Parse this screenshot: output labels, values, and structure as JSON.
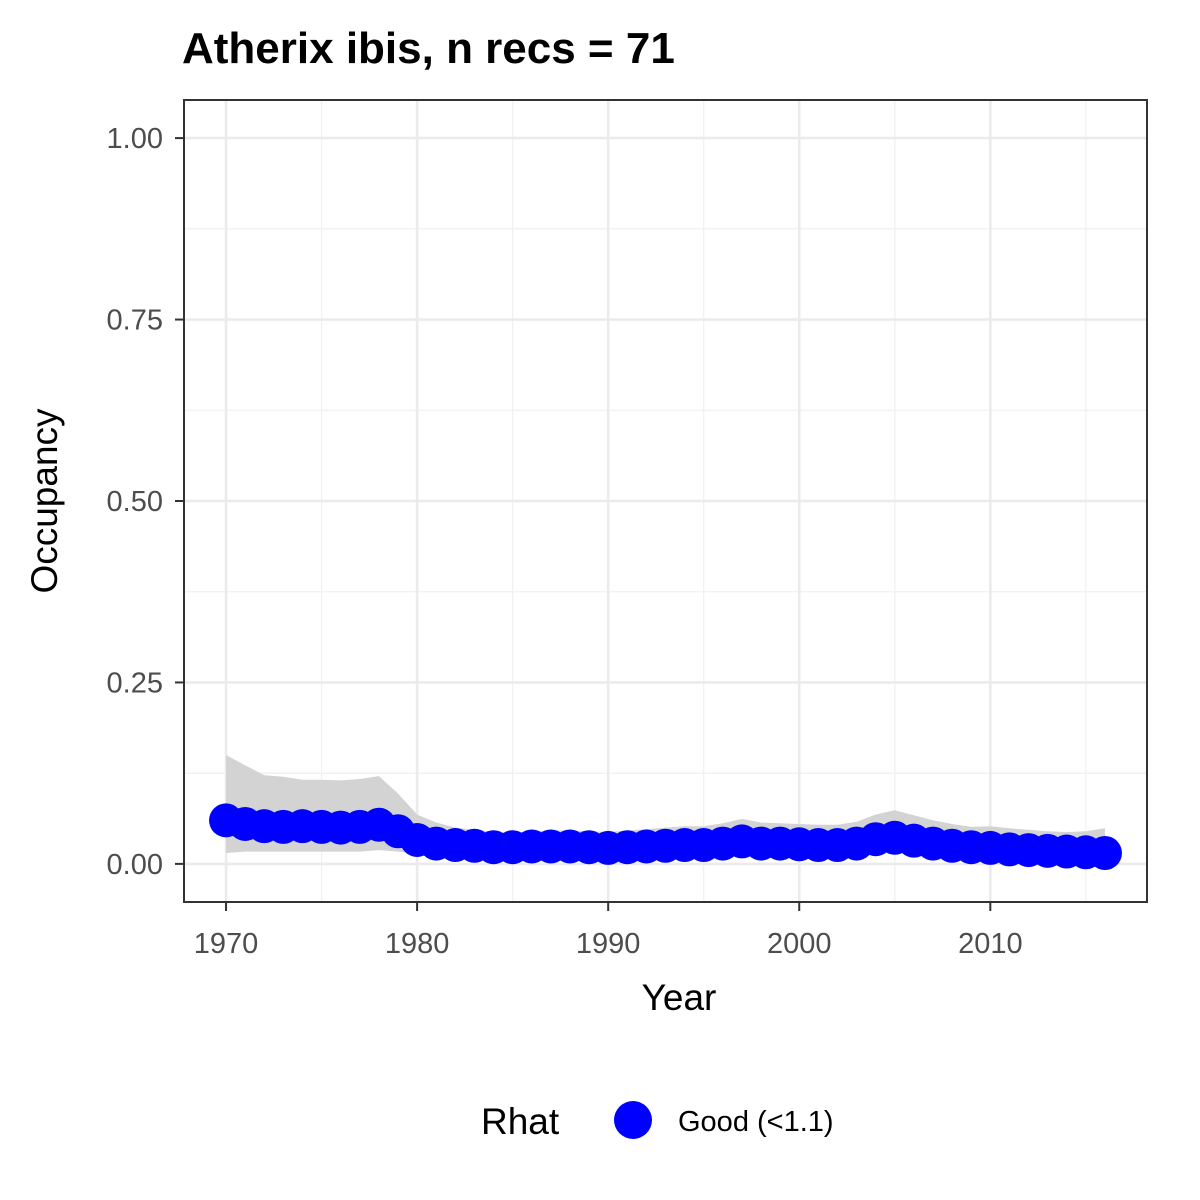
{
  "chart_data": {
    "type": "line",
    "title": "Atherix ibis, n recs = 71",
    "xlabel": "Year",
    "ylabel": "Occupancy",
    "xlim": [
      1967.8,
      2018.2
    ],
    "ylim": [
      -0.0525,
      1.0525
    ],
    "x_ticks": [
      1970,
      1980,
      1990,
      2000,
      2010
    ],
    "x_tick_labels": [
      "1970",
      "1980",
      "1990",
      "2000",
      "2010"
    ],
    "y_ticks": [
      0,
      0.25,
      0.5,
      0.75,
      1.0
    ],
    "y_tick_labels": [
      "0.00",
      "0.25",
      "0.50",
      "0.75",
      "1.00"
    ],
    "grid": true,
    "legend": {
      "position": "bottom",
      "title": "Rhat",
      "entries": [
        {
          "label": "Good (<1.1)",
          "color": "#0000ff"
        }
      ]
    },
    "ribbon_color": "#d3d3d3",
    "point_color": "#0000ff",
    "years": [
      1970,
      1971,
      1972,
      1973,
      1974,
      1975,
      1976,
      1977,
      1978,
      1979,
      1980,
      1981,
      1982,
      1983,
      1984,
      1985,
      1986,
      1987,
      1988,
      1989,
      1990,
      1991,
      1992,
      1993,
      1994,
      1995,
      1996,
      1997,
      1998,
      1999,
      2000,
      2001,
      2002,
      2003,
      2004,
      2005,
      2006,
      2007,
      2008,
      2009,
      2010,
      2011,
      2012,
      2013,
      2014,
      2015,
      2016
    ],
    "series": [
      {
        "values": [
          0.06,
          0.055,
          0.052,
          0.051,
          0.052,
          0.051,
          0.05,
          0.051,
          0.054,
          0.045,
          0.033,
          0.028,
          0.026,
          0.025,
          0.023,
          0.023,
          0.024,
          0.024,
          0.024,
          0.023,
          0.022,
          0.023,
          0.024,
          0.025,
          0.026,
          0.026,
          0.028,
          0.031,
          0.028,
          0.028,
          0.027,
          0.026,
          0.026,
          0.028,
          0.034,
          0.036,
          0.032,
          0.028,
          0.025,
          0.023,
          0.022,
          0.02,
          0.019,
          0.018,
          0.017,
          0.016,
          0.015
        ],
        "lower": [
          0.015,
          0.017,
          0.017,
          0.017,
          0.017,
          0.017,
          0.017,
          0.017,
          0.019,
          0.017,
          0.014,
          0.012,
          0.011,
          0.01,
          0.009,
          0.009,
          0.01,
          0.01,
          0.01,
          0.009,
          0.009,
          0.009,
          0.01,
          0.01,
          0.011,
          0.011,
          0.012,
          0.014,
          0.012,
          0.012,
          0.012,
          0.011,
          0.011,
          0.012,
          0.015,
          0.016,
          0.014,
          0.012,
          0.01,
          0.009,
          0.009,
          0.008,
          0.007,
          0.006,
          0.006,
          0.005,
          0.004
        ],
        "upper": [
          0.15,
          0.136,
          0.122,
          0.12,
          0.116,
          0.116,
          0.115,
          0.117,
          0.121,
          0.097,
          0.068,
          0.057,
          0.05,
          0.047,
          0.044,
          0.043,
          0.045,
          0.046,
          0.046,
          0.045,
          0.044,
          0.046,
          0.048,
          0.05,
          0.052,
          0.052,
          0.056,
          0.062,
          0.057,
          0.056,
          0.055,
          0.054,
          0.054,
          0.058,
          0.068,
          0.074,
          0.067,
          0.06,
          0.055,
          0.051,
          0.052,
          0.049,
          0.047,
          0.045,
          0.044,
          0.045,
          0.049
        ]
      }
    ]
  }
}
